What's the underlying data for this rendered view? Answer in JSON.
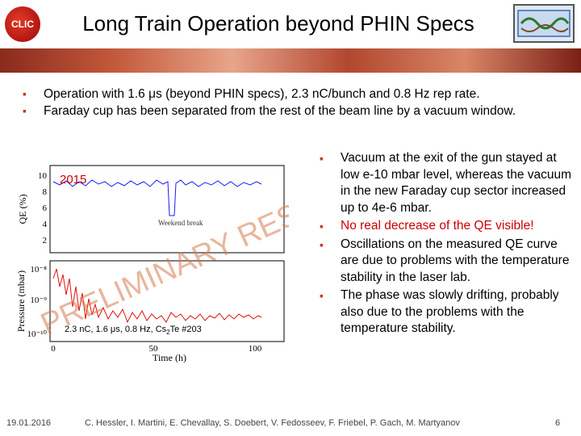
{
  "header": {
    "title": "Long Train Operation beyond PHIN Specs",
    "logo_text": "CLIC"
  },
  "bullets": [
    "Operation with 1.6 μs (beyond PHIN specs), 2.3 nC/bunch and 0.8 Hz rep rate.",
    "Faraday cup has been separated from the rest of the beam line by a vacuum window."
  ],
  "figure": {
    "year_label": "2015",
    "watermark": "PRELIMINARY RESULT",
    "event_label": "Weekend break",
    "caption": "2.3 nC, 1.6 μs, 0.8 Hz, Cs",
    "caption_sub": "2",
    "caption_tail": "Te #203",
    "top_ylabel": "QE (%)",
    "bottom_ylabel": "Pressure (mbar)",
    "xlabel": "Time (h)",
    "top_yticks": [
      "10",
      "8",
      "6",
      "4",
      "2"
    ],
    "bottom_yticks": [
      "10⁻⁸",
      "10⁻⁹",
      "10⁻¹⁰"
    ],
    "xticks": [
      "0",
      "50",
      "100"
    ]
  },
  "right_bullets": [
    {
      "text": "Vacuum at the exit of the gun stayed at low e-10 mbar level, whereas the vacuum in the new Faraday cup sector increased up to 4e-6 mbar.",
      "color": "#000000"
    },
    {
      "text": "No real decrease of the QE visible!",
      "color": "#cc0000"
    },
    {
      "text": "Oscillations on the measured QE curve are due to problems with the temperature stability in the laser lab.",
      "color": "#000000"
    },
    {
      "text": "The phase was slowly drifting, probably also due to the problems with the temperature stability.",
      "color": "#000000"
    }
  ],
  "footer": {
    "date": "19.01.2016",
    "authors": "C. Hessler, I. Martini, E. Chevallay, S. Doebert, V. Fedosseev, F. Friebel, P. Gach, M. Martyanov",
    "page": "6"
  },
  "colors": {
    "bullet": "#c0392b",
    "qe_line": "#1a1aff",
    "pressure_line": "#e01010",
    "highlight": "#cc0000"
  }
}
